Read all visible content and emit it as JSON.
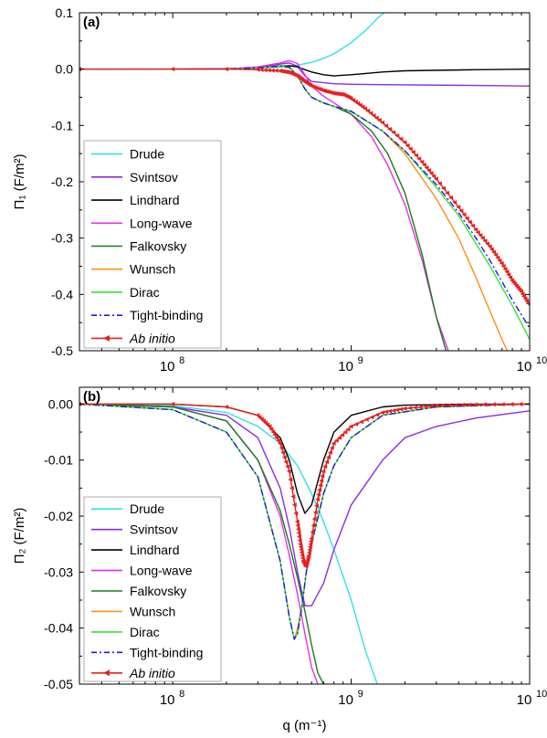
{
  "chart_data": [
    {
      "type": "line",
      "panel_label": "(a)",
      "ylabel": "Π₁ (F/m²)",
      "xlabel": "",
      "x_scale": "log",
      "xlim": [
        30000000,
        10000000000
      ],
      "ylim": [
        -0.5,
        0.1
      ],
      "y_ticks": [
        "0.1",
        "0.0",
        "-0.1",
        "-0.2",
        "-0.3",
        "-0.4",
        "-0.5"
      ],
      "x_ticks": [
        "10^8",
        "10^9",
        "10^10"
      ],
      "grid": false,
      "legend_position": "bottom-left",
      "series": [
        {
          "name": "Drude",
          "color": "#33e0e6",
          "style": "solid",
          "x": [
            30000000,
            100000000,
            200000000,
            300000000,
            400000000,
            500000000,
            600000000,
            700000000,
            800000000,
            1000000000,
            1200000000,
            1400000000,
            1600000000
          ],
          "y": [
            0.0,
            0.0002,
            0.001,
            0.002,
            0.004,
            0.007,
            0.012,
            0.019,
            0.027,
            0.047,
            0.068,
            0.09,
            0.105
          ]
        },
        {
          "name": "Svintsov",
          "color": "#8a2be2",
          "style": "solid",
          "x": [
            30000000,
            100000000,
            200000000,
            300000000,
            400000000,
            450000000,
            500000000,
            550000000,
            600000000,
            800000000,
            1000000000,
            2000000000,
            5000000000,
            10000000000
          ],
          "y": [
            0.0,
            0.0,
            0.0005,
            0.003,
            0.009,
            0.011,
            0.005,
            -0.012,
            -0.022,
            -0.026,
            -0.027,
            -0.028,
            -0.029,
            -0.03
          ]
        },
        {
          "name": "Lindhard",
          "color": "#000000",
          "style": "solid",
          "x": [
            30000000,
            100000000,
            200000000,
            300000000,
            400000000,
            450000000,
            500000000,
            550000000,
            600000000,
            700000000,
            800000000,
            1000000000,
            1500000000,
            2000000000,
            5000000000,
            10000000000
          ],
          "y": [
            0.0,
            0.0,
            0.0005,
            0.002,
            0.005,
            0.006,
            0.004,
            -0.001,
            -0.005,
            -0.01,
            -0.012,
            -0.01,
            -0.005,
            -0.003,
            -0.001,
            0.0
          ]
        },
        {
          "name": "Long-wave",
          "color": "#e62ee6",
          "style": "solid",
          "x": [
            30000000,
            100000000,
            200000000,
            300000000,
            400000000,
            450000000,
            500000000,
            550000000,
            600000000,
            700000000,
            800000000,
            1000000000,
            1300000000,
            1600000000,
            2000000000,
            2500000000,
            3000000000,
            3500000000
          ],
          "y": [
            0.0,
            0.0,
            0.0005,
            0.004,
            0.011,
            0.015,
            0.01,
            -0.01,
            -0.03,
            -0.048,
            -0.06,
            -0.08,
            -0.12,
            -0.17,
            -0.24,
            -0.34,
            -0.44,
            -0.5
          ]
        },
        {
          "name": "Falkovsky",
          "color": "#1a7a1a",
          "style": "solid",
          "x": [
            30000000,
            100000000,
            200000000,
            300000000,
            400000000,
            450000000,
            500000000,
            550000000,
            600000000,
            700000000,
            800000000,
            1000000000,
            1300000000,
            1600000000,
            2000000000,
            2500000000,
            3000000000,
            3400000000
          ],
          "y": [
            0.0,
            0.0,
            0.0,
            0.002,
            0.006,
            0.004,
            -0.012,
            -0.035,
            -0.05,
            -0.06,
            -0.066,
            -0.08,
            -0.11,
            -0.15,
            -0.22,
            -0.33,
            -0.44,
            -0.5
          ]
        },
        {
          "name": "Wunsch",
          "color": "#ff8c1a",
          "style": "solid",
          "x": [
            30000000,
            100000000,
            200000000,
            300000000,
            400000000,
            450000000,
            500000000,
            550000000,
            600000000,
            700000000,
            800000000,
            1000000000,
            1500000000,
            2000000000,
            3000000000,
            4000000000,
            5000000000,
            6000000000,
            7000000000,
            7500000000
          ],
          "y": [
            0.0,
            0.0,
            0.0,
            0.002,
            0.005,
            0.003,
            -0.012,
            -0.035,
            -0.05,
            -0.06,
            -0.066,
            -0.075,
            -0.11,
            -0.15,
            -0.23,
            -0.3,
            -0.37,
            -0.43,
            -0.48,
            -0.5
          ]
        },
        {
          "name": "Dirac",
          "color": "#33e633",
          "style": "solid",
          "x": [
            30000000,
            100000000,
            200000000,
            300000000,
            400000000,
            450000000,
            500000000,
            550000000,
            600000000,
            700000000,
            800000000,
            1000000000,
            1500000000,
            2000000000,
            3000000000,
            4000000000,
            5000000000,
            6000000000,
            8000000000,
            10000000000
          ],
          "y": [
            0.0,
            0.0,
            0.0,
            0.002,
            0.005,
            0.003,
            -0.012,
            -0.035,
            -0.05,
            -0.06,
            -0.066,
            -0.075,
            -0.11,
            -0.145,
            -0.21,
            -0.26,
            -0.31,
            -0.35,
            -0.42,
            -0.48
          ]
        },
        {
          "name": "Tight-binding",
          "color": "#1a1ae6",
          "style": "dashdot",
          "x": [
            30000000,
            100000000,
            200000000,
            300000000,
            400000000,
            450000000,
            500000000,
            550000000,
            600000000,
            700000000,
            800000000,
            1000000000,
            1500000000,
            2000000000,
            3000000000,
            4000000000,
            5000000000,
            6000000000,
            8000000000,
            10000000000
          ],
          "y": [
            0.0,
            0.0,
            0.0,
            0.002,
            0.005,
            0.003,
            -0.012,
            -0.035,
            -0.05,
            -0.06,
            -0.066,
            -0.075,
            -0.11,
            -0.145,
            -0.205,
            -0.255,
            -0.3,
            -0.34,
            -0.41,
            -0.46
          ]
        },
        {
          "name": "Ab initio",
          "color": "#e62020",
          "style": "solid-marker",
          "x": [
            30000000,
            100000000,
            200000000,
            300000000,
            400000000,
            450000000,
            500000000,
            550000000,
            600000000,
            700000000,
            800000000,
            900000000,
            1000000000,
            1200000000,
            1500000000,
            2000000000,
            2500000000,
            3000000000,
            4000000000,
            5000000000,
            6000000000,
            7000000000,
            8000000000,
            9000000000,
            10000000000
          ],
          "y": [
            0.0,
            0.0,
            0.0,
            -0.001,
            -0.003,
            -0.006,
            -0.012,
            -0.022,
            -0.03,
            -0.038,
            -0.043,
            -0.045,
            -0.052,
            -0.07,
            -0.095,
            -0.13,
            -0.165,
            -0.195,
            -0.245,
            -0.285,
            -0.315,
            -0.345,
            -0.375,
            -0.395,
            -0.42
          ]
        }
      ]
    },
    {
      "type": "line",
      "panel_label": "(b)",
      "ylabel": "Π₂ (F/m²)",
      "xlabel": "q (m⁻¹)",
      "x_scale": "log",
      "xlim": [
        30000000,
        10000000000
      ],
      "ylim": [
        -0.05,
        0.003
      ],
      "y_ticks": [
        "0.00",
        "-0.01",
        "-0.02",
        "-0.03",
        "-0.04",
        "-0.05"
      ],
      "x_ticks": [
        "10^8",
        "10^9",
        "10^10"
      ],
      "grid": false,
      "legend_position": "bottom-left",
      "series": [
        {
          "name": "Drude",
          "color": "#33e0e6",
          "style": "solid",
          "x": [
            30000000,
            100000000,
            200000000,
            300000000,
            400000000,
            500000000,
            600000000,
            700000000,
            800000000,
            1000000000,
            1200000000,
            1400000000
          ],
          "y": [
            0.0,
            -0.0003,
            -0.0015,
            -0.004,
            -0.007,
            -0.011,
            -0.016,
            -0.021,
            -0.026,
            -0.035,
            -0.044,
            -0.05
          ]
        },
        {
          "name": "Svintsov",
          "color": "#8a2be2",
          "style": "solid",
          "x": [
            30000000,
            100000000,
            200000000,
            300000000,
            400000000,
            450000000,
            500000000,
            550000000,
            600000000,
            700000000,
            800000000,
            1000000000,
            1500000000,
            2000000000,
            3000000000,
            5000000000,
            10000000000
          ],
          "y": [
            0.0,
            -0.0005,
            -0.002,
            -0.006,
            -0.015,
            -0.022,
            -0.03,
            -0.036,
            -0.036,
            -0.032,
            -0.026,
            -0.018,
            -0.01,
            -0.006,
            -0.004,
            -0.0025,
            -0.0012
          ]
        },
        {
          "name": "Lindhard",
          "color": "#000000",
          "style": "solid",
          "x": [
            30000000,
            100000000,
            200000000,
            300000000,
            400000000,
            450000000,
            500000000,
            550000000,
            600000000,
            700000000,
            800000000,
            1000000000,
            1500000000,
            2000000000,
            5000000000,
            10000000000
          ],
          "y": [
            0.0,
            0.0,
            -0.0005,
            -0.002,
            -0.006,
            -0.01,
            -0.016,
            -0.0195,
            -0.018,
            -0.01,
            -0.005,
            -0.002,
            -0.0005,
            -0.0002,
            0.0,
            0.0
          ]
        },
        {
          "name": "Long-wave",
          "color": "#e62ee6",
          "style": "solid",
          "x": [
            30000000,
            100000000,
            200000000,
            300000000,
            400000000,
            450000000,
            500000000,
            550000000,
            600000000,
            650000000
          ],
          "y": [
            0.0,
            -0.0005,
            -0.003,
            -0.01,
            -0.02,
            -0.027,
            -0.034,
            -0.041,
            -0.047,
            -0.05
          ]
        },
        {
          "name": "Falkovsky",
          "color": "#1a7a1a",
          "style": "solid",
          "x": [
            30000000,
            100000000,
            200000000,
            300000000,
            400000000,
            450000000,
            500000000,
            550000000,
            600000000,
            650000000,
            700000000
          ],
          "y": [
            0.0,
            -0.0005,
            -0.003,
            -0.01,
            -0.019,
            -0.025,
            -0.031,
            -0.037,
            -0.043,
            -0.048,
            -0.05
          ]
        },
        {
          "name": "Wunsch",
          "color": "#ff8c1a",
          "style": "solid",
          "x": [
            30000000,
            100000000,
            200000000,
            300000000,
            400000000,
            450000000,
            480000000,
            500000000,
            530000000,
            560000000,
            600000000,
            700000000,
            800000000,
            1000000000,
            1500000000,
            3000000000,
            10000000000
          ],
          "y": [
            0.0,
            -0.001,
            -0.005,
            -0.013,
            -0.028,
            -0.038,
            -0.042,
            -0.04,
            -0.036,
            -0.03,
            -0.025,
            -0.016,
            -0.011,
            -0.006,
            -0.002,
            -0.0005,
            0.0
          ]
        },
        {
          "name": "Dirac",
          "color": "#33e633",
          "style": "solid",
          "x": [
            30000000,
            100000000,
            200000000,
            300000000,
            400000000,
            450000000,
            480000000,
            500000000,
            530000000,
            560000000,
            600000000,
            700000000,
            800000000,
            1000000000,
            1500000000,
            3000000000,
            10000000000
          ],
          "y": [
            0.0,
            -0.001,
            -0.005,
            -0.013,
            -0.028,
            -0.038,
            -0.042,
            -0.041,
            -0.036,
            -0.03,
            -0.025,
            -0.016,
            -0.011,
            -0.006,
            -0.002,
            -0.0005,
            0.0
          ]
        },
        {
          "name": "Tight-binding",
          "color": "#1a1ae6",
          "style": "dashdot",
          "x": [
            30000000,
            100000000,
            200000000,
            300000000,
            400000000,
            450000000,
            480000000,
            500000000,
            530000000,
            560000000,
            600000000,
            700000000,
            800000000,
            1000000000,
            1500000000,
            3000000000,
            10000000000
          ],
          "y": [
            0.0,
            -0.001,
            -0.005,
            -0.013,
            -0.028,
            -0.038,
            -0.042,
            -0.041,
            -0.036,
            -0.03,
            -0.025,
            -0.016,
            -0.011,
            -0.006,
            -0.002,
            -0.0005,
            0.0
          ]
        },
        {
          "name": "Ab initio",
          "color": "#e62020",
          "style": "solid-marker",
          "x": [
            30000000,
            100000000,
            200000000,
            300000000,
            350000000,
            400000000,
            450000000,
            500000000,
            520000000,
            540000000,
            560000000,
            580000000,
            600000000,
            650000000,
            700000000,
            800000000,
            1000000000,
            1500000000,
            2000000000,
            3000000000,
            5000000000,
            10000000000
          ],
          "y": [
            0.0,
            0.0,
            -0.0005,
            -0.002,
            -0.004,
            -0.007,
            -0.012,
            -0.021,
            -0.025,
            -0.028,
            -0.029,
            -0.027,
            -0.024,
            -0.017,
            -0.012,
            -0.007,
            -0.004,
            -0.0015,
            -0.0008,
            -0.0003,
            -0.0001,
            0.0
          ]
        }
      ]
    }
  ]
}
